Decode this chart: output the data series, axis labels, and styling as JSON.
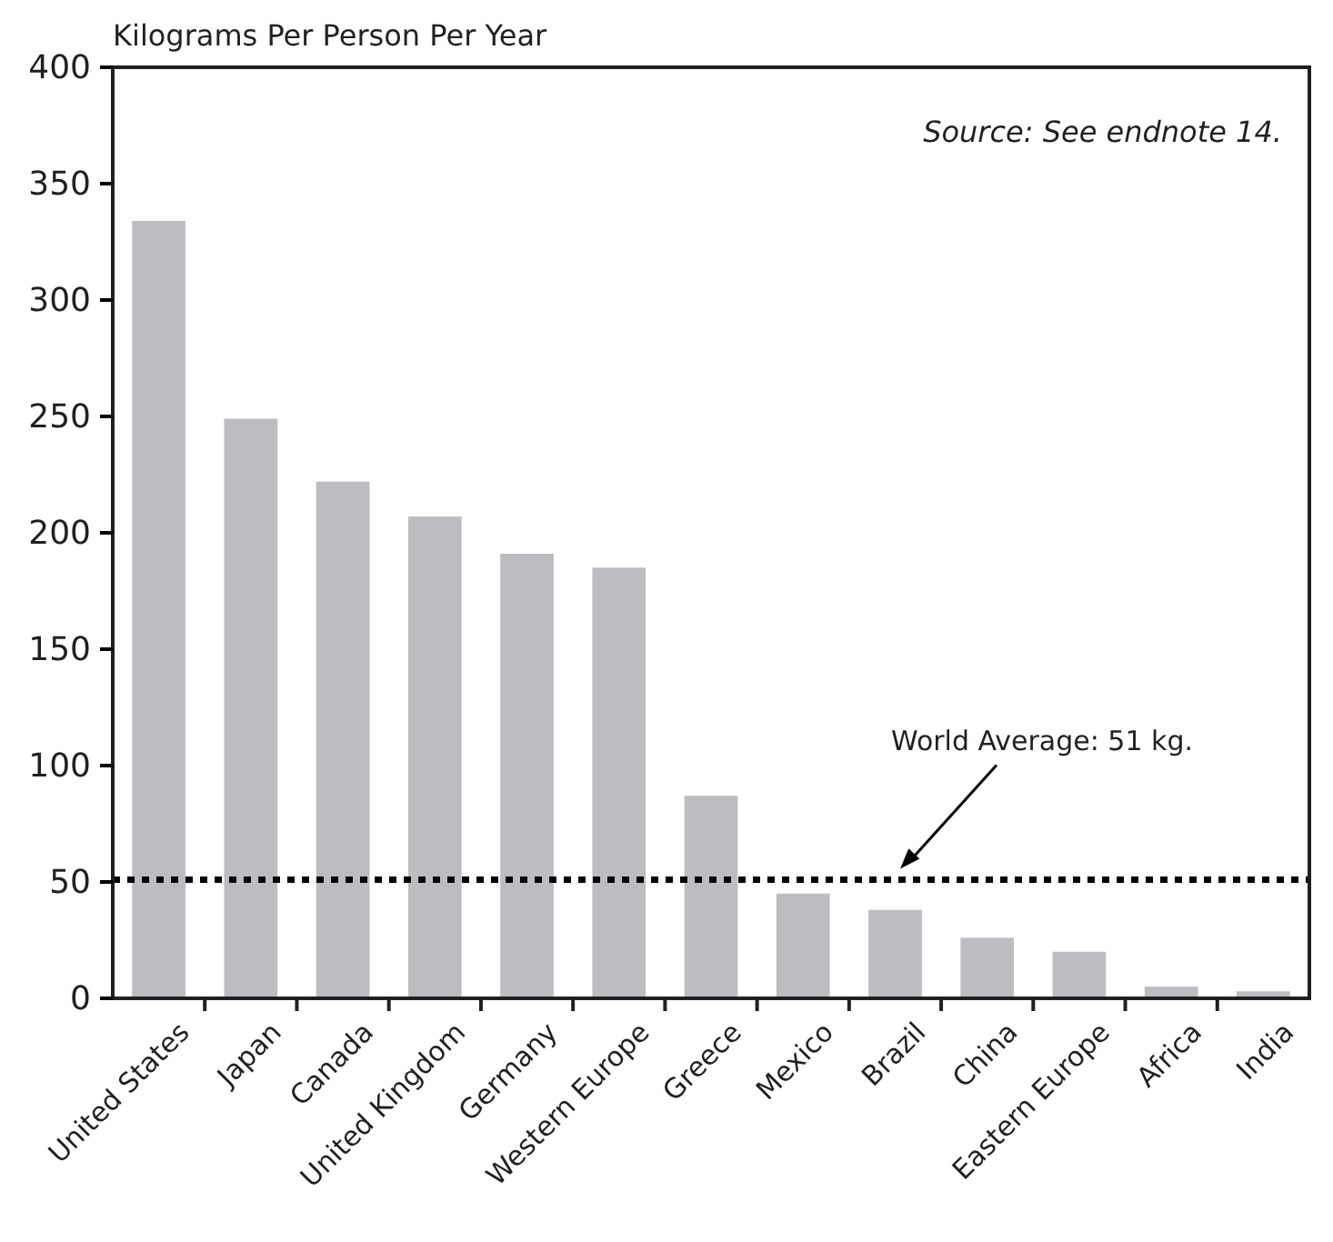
{
  "chart_data": {
    "type": "bar",
    "ylabel": "Kilograms Per Person Per Year",
    "categories": [
      "United States",
      "Japan",
      "Canada",
      "United Kingdom",
      "Germany",
      "Western Europe",
      "Greece",
      "Mexico",
      "Brazil",
      "China",
      "Eastern Europe",
      "Africa",
      "India"
    ],
    "values": [
      334,
      249,
      222,
      207,
      191,
      185,
      87,
      45,
      38,
      26,
      20,
      5,
      3
    ],
    "color": "#bcbdc0",
    "ylim": [
      0,
      400
    ],
    "yticks": [
      0,
      50,
      100,
      150,
      200,
      250,
      300,
      350,
      400
    ],
    "grid": false,
    "ref_lines": [
      {
        "axis": "y",
        "value": 51,
        "label": "World Average: 51 kg.",
        "color": "#000000",
        "line_style": "dotted"
      }
    ],
    "annotations": [
      "Source: See endnote 14."
    ]
  }
}
